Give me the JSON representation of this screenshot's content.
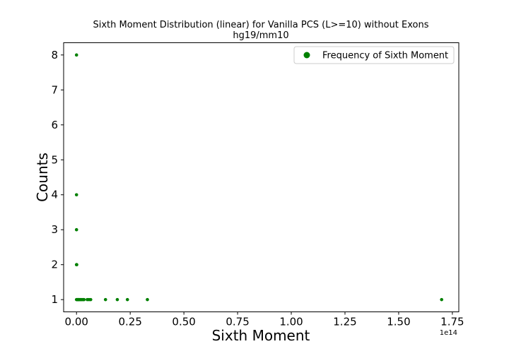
{
  "chart_data": {
    "type": "scatter",
    "title": "Sixth Moment Distribution (linear) for Vanilla PCS (L>=10) without Exons",
    "subtitle": "hg19/mm10",
    "xlabel": "Sixth Moment",
    "ylabel": "Counts",
    "x_offset_label": "1e14",
    "xlim": [
      -0.06,
      1.78
    ],
    "ylim": [
      0.65,
      8.35
    ],
    "x_ticks": [
      0.0,
      0.25,
      0.5,
      0.75,
      1.0,
      1.25,
      1.5,
      1.75
    ],
    "x_tick_labels": [
      "0.00",
      "0.25",
      "0.50",
      "0.75",
      "1.00",
      "1.25",
      "1.50",
      "1.75"
    ],
    "y_ticks": [
      1,
      2,
      3,
      4,
      5,
      6,
      7,
      8
    ],
    "y_tick_labels": [
      "1",
      "2",
      "3",
      "4",
      "5",
      "6",
      "7",
      "8"
    ],
    "grid": false,
    "legend_position": "top-right",
    "series": [
      {
        "name": "Frequency of Sixth Moment",
        "color": "#008000",
        "marker": "circle",
        "points": [
          [
            0.0,
            8
          ],
          [
            0.0,
            4
          ],
          [
            0.0,
            3
          ],
          [
            0.0,
            2
          ],
          [
            0.001,
            2
          ],
          [
            0.0,
            1
          ],
          [
            0.003,
            1
          ],
          [
            0.006,
            1
          ],
          [
            0.009,
            1
          ],
          [
            0.012,
            1
          ],
          [
            0.016,
            1
          ],
          [
            0.02,
            1
          ],
          [
            0.025,
            1
          ],
          [
            0.03,
            1
          ],
          [
            0.035,
            1
          ],
          [
            0.05,
            1
          ],
          [
            0.058,
            1
          ],
          [
            0.066,
            1
          ],
          [
            0.135,
            1
          ],
          [
            0.19,
            1
          ],
          [
            0.237,
            1
          ],
          [
            0.33,
            1
          ],
          [
            1.7,
            1
          ]
        ]
      }
    ]
  }
}
